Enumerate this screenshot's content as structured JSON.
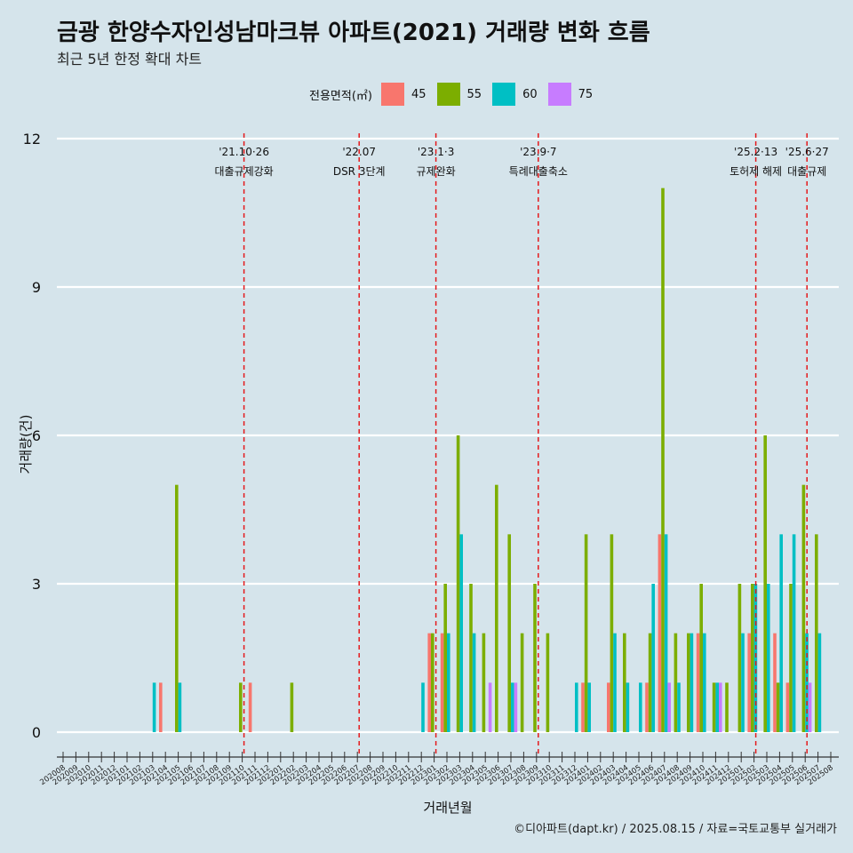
{
  "title": "금광 한양수자인성남마크뷰 아파트(2021) 거래량 변화 흐름",
  "subtitle": "최근 5년 한정 확대 차트",
  "caption": "©디아파트(dapt.kr) / 2025.08.15 / 자료=국토교통부 실거래가",
  "legend": {
    "title": "전용면적(㎡)",
    "items": [
      {
        "label": "45",
        "color": "#f8766d"
      },
      {
        "label": "55",
        "color": "#7cae00"
      },
      {
        "label": "60",
        "color": "#00bfc4"
      },
      {
        "label": "75",
        "color": "#c77cff"
      }
    ]
  },
  "chart_data": {
    "type": "bar",
    "title": "금광 한양수자인성남마크뷰 아파트(2021) 거래량 변화 흐름",
    "subtitle": "최근 5년 한정 확대 차트",
    "xlabel": "거래년월",
    "ylabel": "거래량(건)",
    "ylim": [
      0,
      12
    ],
    "yticks": [
      0,
      3,
      6,
      9,
      12
    ],
    "grid": true,
    "legend_position": "top",
    "categories": [
      "202008",
      "202009",
      "202010",
      "202011",
      "202012",
      "202101",
      "202102",
      "202103",
      "202104",
      "202105",
      "202106",
      "202107",
      "202108",
      "202109",
      "202110",
      "202111",
      "202112",
      "202201",
      "202202",
      "202203",
      "202204",
      "202205",
      "202206",
      "202207",
      "202208",
      "202209",
      "202210",
      "202211",
      "202212",
      "202301",
      "202302",
      "202303",
      "202304",
      "202305",
      "202306",
      "202307",
      "202308",
      "202309",
      "202310",
      "202311",
      "202312",
      "202401",
      "202402",
      "202403",
      "202404",
      "202405",
      "202406",
      "202407",
      "202408",
      "202409",
      "202410",
      "202411",
      "202412",
      "202501",
      "202502",
      "202503",
      "202504",
      "202505",
      "202506",
      "202507",
      "202508"
    ],
    "series": [
      {
        "name": "45",
        "color": "#f8766d",
        "values": [
          0,
          0,
          0,
          0,
          0,
          0,
          0,
          0,
          1,
          0,
          0,
          0,
          0,
          0,
          0,
          1,
          0,
          0,
          0,
          0,
          0,
          0,
          0,
          0,
          0,
          0,
          0,
          0,
          0,
          2,
          2,
          0,
          0,
          0,
          0,
          0,
          0,
          0,
          0,
          0,
          0,
          1,
          0,
          1,
          0,
          0,
          1,
          4,
          0,
          0,
          2,
          0,
          0,
          0,
          2,
          0,
          2,
          1,
          0,
          0,
          0
        ]
      },
      {
        "name": "55",
        "color": "#7cae00",
        "values": [
          0,
          0,
          0,
          0,
          0,
          0,
          0,
          0,
          0,
          5,
          0,
          0,
          0,
          0,
          1,
          0,
          0,
          0,
          1,
          0,
          0,
          0,
          0,
          0,
          0,
          0,
          0,
          0,
          0,
          2,
          3,
          6,
          3,
          2,
          5,
          4,
          2,
          3,
          2,
          0,
          0,
          4,
          0,
          4,
          2,
          0,
          2,
          11,
          2,
          2,
          3,
          1,
          1,
          3,
          3,
          6,
          1,
          3,
          5,
          4,
          0
        ]
      },
      {
        "name": "60",
        "color": "#00bfc4",
        "values": [
          0,
          0,
          0,
          0,
          0,
          0,
          0,
          1,
          0,
          1,
          0,
          0,
          0,
          0,
          0,
          0,
          0,
          0,
          0,
          0,
          0,
          0,
          0,
          0,
          0,
          0,
          0,
          0,
          1,
          0,
          2,
          4,
          2,
          0,
          0,
          1,
          0,
          0,
          0,
          0,
          1,
          1,
          0,
          2,
          1,
          1,
          3,
          4,
          1,
          2,
          2,
          1,
          0,
          2,
          3,
          3,
          4,
          4,
          2,
          2,
          0
        ]
      },
      {
        "name": "75",
        "color": "#c77cff",
        "values": [
          0,
          0,
          0,
          0,
          0,
          0,
          0,
          0,
          0,
          0,
          0,
          0,
          0,
          0,
          0,
          0,
          0,
          0,
          0,
          0,
          0,
          0,
          0,
          0,
          0,
          0,
          0,
          0,
          0,
          0,
          0,
          0,
          0,
          1,
          0,
          1,
          0,
          0,
          0,
          0,
          0,
          0,
          0,
          0,
          0,
          0,
          0,
          1,
          0,
          0,
          0,
          1,
          0,
          0,
          0,
          0,
          0,
          0,
          1,
          0,
          0
        ]
      }
    ],
    "annotations": [
      {
        "x": "202110",
        "date": "'21.10·26",
        "label": "대출규제강화"
      },
      {
        "x": "202207",
        "date": "'22.07",
        "label": "DSR 3단계"
      },
      {
        "x": "202301",
        "date": "'23.1·3",
        "label": "규제완화"
      },
      {
        "x": "202309",
        "date": "'23.9·7",
        "label": "특례대출축소"
      },
      {
        "x": "202502",
        "date": "'25.2·13",
        "label": "토허제 해제"
      },
      {
        "x": "202506",
        "date": "'25.6·27",
        "label": "대출규제"
      }
    ]
  }
}
